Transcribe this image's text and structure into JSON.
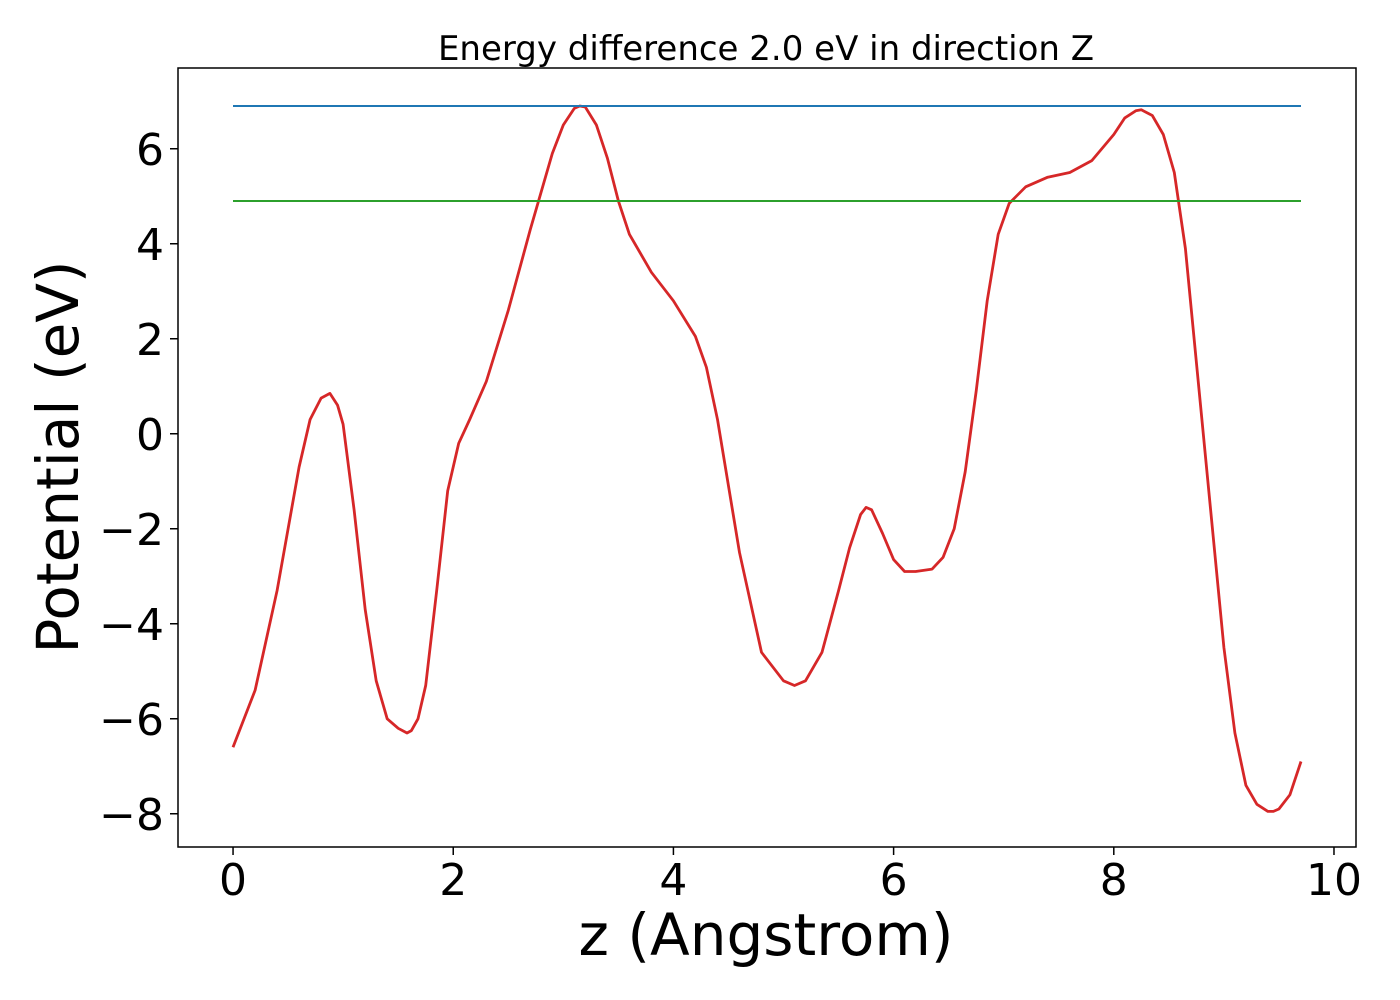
{
  "chart_data": {
    "type": "line",
    "title": "Energy difference 2.0 eV in direction Z",
    "xlabel": "z (Angstrom)",
    "ylabel": "Potential (eV)",
    "xlim": [
      -0.5,
      10.2
    ],
    "ylim": [
      -8.7,
      7.7
    ],
    "xticks": [
      0,
      2,
      4,
      6,
      8,
      10
    ],
    "xtick_labels": [
      "0",
      "2",
      "4",
      "6",
      "8",
      "10"
    ],
    "yticks": [
      -8,
      -6,
      -4,
      -2,
      0,
      2,
      4,
      6
    ],
    "ytick_labels": [
      "−8",
      "−6",
      "−4",
      "−2",
      "0",
      "2",
      "4",
      "6"
    ],
    "grid": false,
    "legend": false,
    "series": [
      {
        "color": "#d62728",
        "x": [
          0,
          0.2,
          0.4,
          0.6,
          0.7,
          0.8,
          0.88,
          0.95,
          1.0,
          1.1,
          1.2,
          1.3,
          1.4,
          1.5,
          1.58,
          1.62,
          1.68,
          1.75,
          1.85,
          1.95,
          2.05,
          2.15,
          2.3,
          2.5,
          2.7,
          2.9,
          3.0,
          3.1,
          3.15,
          3.2,
          3.3,
          3.4,
          3.5,
          3.6,
          3.8,
          4.0,
          4.2,
          4.3,
          4.4,
          4.6,
          4.8,
          5.0,
          5.1,
          5.2,
          5.35,
          5.5,
          5.6,
          5.7,
          5.75,
          5.8,
          5.9,
          6.0,
          6.1,
          6.2,
          6.35,
          6.45,
          6.55,
          6.65,
          6.75,
          6.85,
          6.95,
          7.05,
          7.2,
          7.4,
          7.6,
          7.8,
          8.0,
          8.1,
          8.2,
          8.25,
          8.35,
          8.45,
          8.55,
          8.65,
          8.8,
          9.0,
          9.1,
          9.2,
          9.3,
          9.4,
          9.45,
          9.5,
          9.6,
          9.7
        ],
        "y": [
          -6.6,
          -5.4,
          -3.3,
          -0.7,
          0.3,
          0.75,
          0.85,
          0.6,
          0.2,
          -1.6,
          -3.7,
          -5.2,
          -6.0,
          -6.2,
          -6.3,
          -6.25,
          -6.0,
          -5.3,
          -3.3,
          -1.2,
          -0.2,
          0.3,
          1.1,
          2.6,
          4.3,
          5.9,
          6.5,
          6.85,
          6.9,
          6.88,
          6.5,
          5.8,
          4.9,
          4.2,
          3.4,
          2.8,
          2.05,
          1.4,
          0.3,
          -2.5,
          -4.6,
          -5.2,
          -5.3,
          -5.2,
          -4.6,
          -3.3,
          -2.4,
          -1.7,
          -1.55,
          -1.6,
          -2.1,
          -2.65,
          -2.9,
          -2.9,
          -2.85,
          -2.6,
          -2.0,
          -0.8,
          0.9,
          2.8,
          4.2,
          4.85,
          5.2,
          5.4,
          5.5,
          5.75,
          6.3,
          6.65,
          6.8,
          6.82,
          6.7,
          6.3,
          5.5,
          3.9,
          0.3,
          -4.5,
          -6.3,
          -7.4,
          -7.8,
          -7.95,
          -7.95,
          -7.9,
          -7.6,
          -6.9
        ]
      },
      {
        "color": "#1f77b4",
        "x": [
          0,
          9.7
        ],
        "y": [
          6.9,
          6.9
        ]
      },
      {
        "color": "#2ca02c",
        "x": [
          0,
          9.7
        ],
        "y": [
          4.9,
          4.9
        ]
      }
    ]
  }
}
